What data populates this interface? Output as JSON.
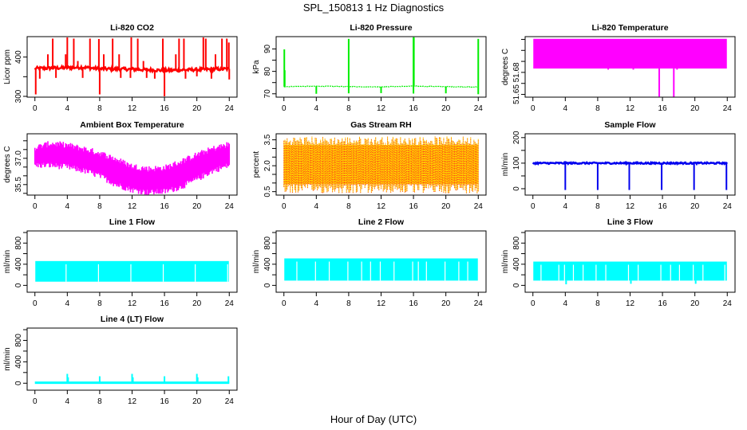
{
  "figure": {
    "title": "SPL_150813  1 Hz Diagnostics",
    "xlabel": "Hour of Day (UTC)"
  },
  "chart_data": [
    {
      "type": "line",
      "title": "Li-820 CO2",
      "ylabel": "Licor ppm",
      "color": "#ff0000",
      "xlim": [
        0,
        24
      ],
      "ylim": [
        298,
        452
      ],
      "x_ticks": [
        0,
        4,
        8,
        12,
        16,
        20,
        24
      ],
      "y_ticks": [
        300,
        350,
        400
      ],
      "y_tick_labels": [
        "300",
        "",
        "400"
      ],
      "baseline": [
        [
          0,
          371
        ],
        [
          4,
          373
        ],
        [
          6,
          374
        ],
        [
          8,
          370
        ],
        [
          12,
          369
        ],
        [
          16,
          366
        ],
        [
          20,
          368
        ],
        [
          24,
          370
        ]
      ],
      "noise": 4,
      "spikes_up": [
        [
          2.2,
          447
        ],
        [
          4.0,
          450
        ],
        [
          4.8,
          447
        ],
        [
          6.8,
          447
        ],
        [
          7.9,
          446
        ],
        [
          9.6,
          447
        ],
        [
          11.9,
          450
        ],
        [
          12.7,
          447
        ],
        [
          15.8,
          447
        ],
        [
          17.8,
          447
        ],
        [
          18.4,
          447
        ],
        [
          20.8,
          450
        ],
        [
          21.1,
          447
        ],
        [
          23.1,
          447
        ],
        [
          23.7,
          447
        ],
        [
          23.95,
          437
        ],
        [
          1.6,
          407
        ],
        [
          3.8,
          407
        ],
        [
          5.3,
          390
        ],
        [
          8.5,
          407
        ],
        [
          10.4,
          407
        ],
        [
          13.4,
          390
        ],
        [
          17.4,
          407
        ],
        [
          22.3,
          407
        ]
      ],
      "spikes_down": [
        [
          0.1,
          305
        ],
        [
          8.0,
          305
        ],
        [
          16.0,
          300
        ],
        [
          24.0,
          343
        ],
        [
          0.6,
          345
        ],
        [
          2.6,
          347
        ],
        [
          5.9,
          347
        ],
        [
          10.6,
          347
        ],
        [
          11.8,
          347
        ],
        [
          13.8,
          347
        ],
        [
          14.8,
          345
        ],
        [
          18.6,
          345
        ],
        [
          20.0,
          351
        ],
        [
          21.8,
          345
        ]
      ]
    },
    {
      "type": "line",
      "title": "Li-820 Pressure",
      "ylabel": "kPa",
      "color": "#00ee00",
      "xlim": [
        0,
        24
      ],
      "ylim": [
        68.5,
        95.5
      ],
      "x_ticks": [
        0,
        4,
        8,
        12,
        16,
        20,
        24
      ],
      "y_ticks": [
        70,
        75,
        80,
        85,
        90
      ],
      "y_tick_labels": [
        "70",
        "",
        "80",
        "",
        "90"
      ],
      "baseline": [
        [
          0,
          73.2
        ],
        [
          4,
          73.4
        ],
        [
          8,
          73.2
        ],
        [
          12,
          73.1
        ],
        [
          16,
          73.4
        ],
        [
          20,
          73.2
        ],
        [
          24,
          73.0
        ]
      ],
      "noise": 0.15,
      "spikes_up": [
        [
          0.05,
          89.8
        ],
        [
          0.1,
          80.5
        ],
        [
          8.0,
          94.5
        ],
        [
          16.0,
          95.2
        ],
        [
          16.05,
          95.2
        ],
        [
          24.0,
          94.5
        ]
      ],
      "spikes_down": [
        [
          4.0,
          70.0
        ],
        [
          8.0,
          70.2
        ],
        [
          12.0,
          70.3
        ],
        [
          16.0,
          70.1
        ],
        [
          20.0,
          70.2
        ],
        [
          24.0,
          69.8
        ]
      ]
    },
    {
      "type": "area",
      "title": "Li-820 Temperature",
      "ylabel": "degrees C",
      "color": "#ff00ff",
      "xlim": [
        0,
        24
      ],
      "ylim": [
        51.6475,
        51.7025
      ],
      "x_ticks": [
        0,
        4,
        8,
        12,
        16,
        20,
        24
      ],
      "y_ticks": [
        51.65,
        51.66,
        51.67,
        51.68,
        51.69,
        51.7
      ],
      "y_tick_labels": [
        "51.65",
        "",
        "51.68",
        "",
        "",
        ""
      ],
      "band": [
        51.6735,
        51.7005
      ],
      "spikes_down": [
        [
          9.3,
          51.6725
        ],
        [
          12.4,
          51.6725
        ],
        [
          15.6,
          51.648
        ],
        [
          17.4,
          51.6475
        ],
        [
          17.8,
          51.6725
        ]
      ]
    },
    {
      "type": "area",
      "title": "Ambient Box Temperature",
      "ylabel": "degrees C",
      "color": "#ff00ff",
      "xlim": [
        0,
        24
      ],
      "ylim": [
        34.9,
        38.4
      ],
      "x_ticks": [
        0,
        4,
        8,
        12,
        16,
        20,
        24
      ],
      "y_ticks": [
        35.0,
        35.5,
        36.0,
        36.5,
        37.0,
        37.5,
        38.0
      ],
      "y_tick_labels": [
        "",
        "35.5",
        "",
        "",
        "37.0",
        "",
        ""
      ],
      "band_low": [
        [
          0,
          36.6
        ],
        [
          2,
          36.6
        ],
        [
          4,
          36.5
        ],
        [
          6,
          36.3
        ],
        [
          8,
          36.0
        ],
        [
          10,
          35.5
        ],
        [
          12,
          35.2
        ],
        [
          14,
          35.05
        ],
        [
          16,
          35.1
        ],
        [
          18,
          35.35
        ],
        [
          20,
          35.8
        ],
        [
          22,
          36.3
        ],
        [
          24,
          36.6
        ]
      ],
      "band_high": [
        [
          0,
          37.6
        ],
        [
          2,
          37.85
        ],
        [
          4,
          37.75
        ],
        [
          6,
          37.55
        ],
        [
          8,
          37.3
        ],
        [
          10,
          36.95
        ],
        [
          12,
          36.55
        ],
        [
          14,
          36.4
        ],
        [
          16,
          36.45
        ],
        [
          18,
          36.8
        ],
        [
          20,
          37.2
        ],
        [
          22,
          37.55
        ],
        [
          24,
          37.8
        ]
      ]
    },
    {
      "type": "area",
      "title": "Gas Stream RH",
      "ylabel": "percent",
      "color": "#ffcc00",
      "color2": "#ff2020",
      "xlim": [
        0,
        24
      ],
      "ylim": [
        0.3,
        3.85
      ],
      "x_ticks": [
        0,
        4,
        8,
        12,
        16,
        20,
        24
      ],
      "y_ticks": [
        0.5,
        1.0,
        1.5,
        2.0,
        2.5,
        3.0,
        3.5
      ],
      "y_tick_labels": [
        "0.5",
        "",
        "",
        "2.0",
        "",
        "",
        "3.5"
      ],
      "band_low": 0.95,
      "band_high": 3.2,
      "min_value": 0.4,
      "max_value": 3.7
    },
    {
      "type": "line",
      "title": "Sample Flow",
      "ylabel": "ml/min",
      "color": "#0000ee",
      "xlim": [
        0,
        24
      ],
      "ylim": [
        -25,
        215
      ],
      "x_ticks": [
        0,
        4,
        8,
        12,
        16,
        20,
        24
      ],
      "y_ticks": [
        0,
        50,
        100,
        150,
        200
      ],
      "y_tick_labels": [
        "0",
        "",
        "100",
        "",
        "200"
      ],
      "baseline": 100,
      "noise": 3,
      "spikes_down": [
        [
          4.0,
          -5
        ],
        [
          8.0,
          -5
        ],
        [
          11.9,
          -5
        ],
        [
          15.9,
          -5
        ],
        [
          19.9,
          -5
        ],
        [
          23.9,
          -5
        ]
      ]
    },
    {
      "type": "area",
      "title": "Line 1 Flow",
      "ylabel": "ml/min",
      "color": "#00ffff",
      "xlim": [
        0,
        24
      ],
      "ylim": [
        -130,
        1030
      ],
      "x_ticks": [
        0,
        4,
        8,
        12,
        16,
        20,
        24
      ],
      "y_ticks": [
        0,
        200,
        400,
        600,
        800,
        1000
      ],
      "y_tick_labels": [
        "0",
        "",
        "400",
        "",
        "800",
        ""
      ],
      "band": [
        70,
        460
      ],
      "gaps": [
        3.85,
        7.85,
        11.85,
        15.85,
        19.8,
        23.8
      ]
    },
    {
      "type": "area",
      "title": "Line 2 Flow",
      "ylabel": "ml/min",
      "color": "#00ffff",
      "xlim": [
        0,
        24
      ],
      "ylim": [
        -130,
        1030
      ],
      "x_ticks": [
        0,
        4,
        8,
        12,
        16,
        20,
        24
      ],
      "y_ticks": [
        0,
        200,
        400,
        600,
        800,
        1000
      ],
      "y_tick_labels": [
        "0",
        "",
        "400",
        "",
        "800",
        ""
      ],
      "band": [
        90,
        510
      ],
      "gaps": [
        1.6,
        3.9,
        5.6,
        7.9,
        9.6,
        10.7,
        11.9,
        13.6,
        15.9,
        16.6,
        17.6,
        19.9,
        21.6,
        22.7
      ]
    },
    {
      "type": "area",
      "title": "Line 3 Flow",
      "ylabel": "ml/min",
      "color": "#00ffff",
      "xlim": [
        0,
        24
      ],
      "ylim": [
        -130,
        1030
      ],
      "x_ticks": [
        0,
        4,
        8,
        12,
        16,
        20,
        24
      ],
      "y_ticks": [
        0,
        200,
        400,
        600,
        800,
        1000
      ],
      "y_tick_labels": [
        "0",
        "",
        "400",
        "",
        "800",
        ""
      ],
      "band": [
        90,
        450
      ],
      "gaps": [
        1.0,
        3.2,
        3.9,
        5.0,
        6.2,
        7.8,
        9.0,
        11.8,
        13.0,
        15.8,
        17.0,
        18.1,
        19.8,
        21.0,
        23.7
      ],
      "spikes_down": [
        [
          4.1,
          20
        ],
        [
          12.1,
          30
        ],
        [
          20.1,
          30
        ]
      ]
    },
    {
      "type": "line",
      "title": "Line 4 (LT) Flow",
      "ylabel": "ml/min",
      "color": "#00ffff",
      "xlim": [
        0,
        24
      ],
      "ylim": [
        -130,
        1030
      ],
      "x_ticks": [
        0,
        4,
        8,
        12,
        16,
        20,
        24
      ],
      "y_ticks": [
        0,
        200,
        400,
        600,
        800,
        1000
      ],
      "y_tick_labels": [
        "0",
        "",
        "400",
        "",
        "800",
        ""
      ],
      "baseline": 10,
      "spikes_up": [
        [
          4.0,
          175
        ],
        [
          4.1,
          110
        ],
        [
          8.0,
          130
        ],
        [
          12.0,
          175
        ],
        [
          12.1,
          110
        ],
        [
          16.0,
          130
        ],
        [
          20.0,
          175
        ],
        [
          20.1,
          110
        ],
        [
          23.9,
          130
        ]
      ]
    }
  ]
}
